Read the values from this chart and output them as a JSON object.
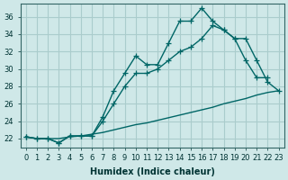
{
  "xlabel": "Humidex (Indice chaleur)",
  "bg_color": "#cfe8e8",
  "grid_color": "#aacccc",
  "line_color": "#006666",
  "xlim": [
    -0.5,
    23.5
  ],
  "ylim": [
    21.0,
    37.5
  ],
  "yticks": [
    22,
    24,
    26,
    28,
    30,
    32,
    34,
    36
  ],
  "xticks": [
    0,
    1,
    2,
    3,
    4,
    5,
    6,
    7,
    8,
    9,
    10,
    11,
    12,
    13,
    14,
    15,
    16,
    17,
    18,
    19,
    20,
    21,
    22,
    23
  ],
  "series_bottom_x": [
    0,
    1,
    2,
    3,
    4,
    5,
    6,
    7,
    8,
    9,
    10,
    11,
    12,
    13,
    14,
    15,
    16,
    17,
    18,
    19,
    20,
    21,
    22,
    23
  ],
  "series_bottom_y": [
    22.2,
    22.0,
    22.0,
    22.0,
    22.2,
    22.3,
    22.5,
    22.7,
    23.0,
    23.3,
    23.6,
    23.8,
    24.1,
    24.4,
    24.7,
    25.0,
    25.3,
    25.6,
    26.0,
    26.3,
    26.6,
    27.0,
    27.3,
    27.5
  ],
  "series_mid_x": [
    0,
    1,
    2,
    3,
    4,
    5,
    6,
    7,
    8,
    9,
    10,
    11,
    12,
    13,
    14,
    15,
    16,
    17,
    18,
    19,
    20,
    21,
    22,
    23
  ],
  "series_mid_y": [
    22.2,
    22.0,
    22.0,
    21.5,
    22.3,
    22.3,
    22.3,
    24.0,
    26.0,
    28.0,
    29.5,
    29.5,
    30.0,
    31.0,
    32.0,
    32.5,
    33.5,
    35.0,
    34.5,
    33.5,
    33.5,
    31.0,
    28.5,
    27.5
  ],
  "series_top_x": [
    0,
    1,
    2,
    3,
    4,
    5,
    6,
    7,
    8,
    9,
    10,
    11,
    12,
    13,
    14,
    15,
    16,
    17,
    18,
    19,
    20,
    21,
    22
  ],
  "series_top_y": [
    22.2,
    22.0,
    22.0,
    21.5,
    22.3,
    22.3,
    22.3,
    24.5,
    27.5,
    29.5,
    31.5,
    30.5,
    30.5,
    33.0,
    35.5,
    35.5,
    37.0,
    35.5,
    34.5,
    33.5,
    31.0,
    29.0,
    29.0
  ]
}
